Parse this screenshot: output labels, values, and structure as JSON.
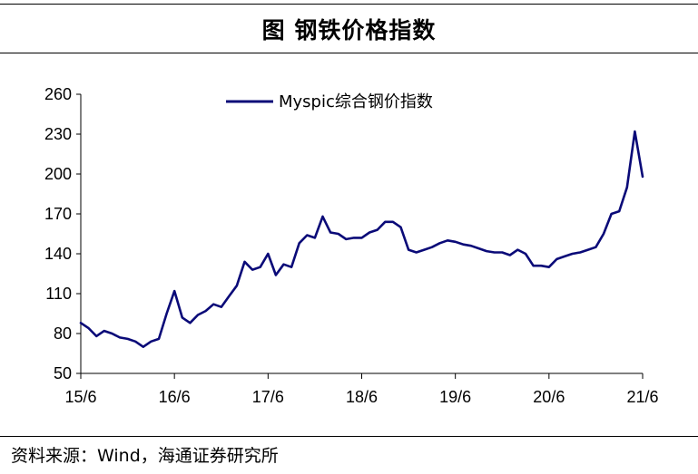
{
  "header": {
    "title": "图  钢铁价格指数"
  },
  "footer": {
    "source": "资料来源：Wind，海通证券研究所"
  },
  "chart_data": {
    "type": "line",
    "title": "",
    "xlabel": "",
    "ylabel": "",
    "ylim": [
      50,
      260
    ],
    "yticks": [
      "50",
      "80",
      "110",
      "140",
      "170",
      "200",
      "230",
      "260"
    ],
    "xticks": [
      "15/6",
      "16/6",
      "17/6",
      "18/6",
      "19/6",
      "20/6",
      "21/6"
    ],
    "legend_position": "top",
    "grid": false,
    "line_color": "#0a0a78",
    "series": [
      {
        "name": "Myspic综合钢价指数",
        "x": [
          "2015-06",
          "2015-07",
          "2015-08",
          "2015-09",
          "2015-10",
          "2015-11",
          "2015-12",
          "2016-01",
          "2016-02",
          "2016-03",
          "2016-04",
          "2016-05",
          "2016-06",
          "2016-07",
          "2016-08",
          "2016-09",
          "2016-10",
          "2016-11",
          "2016-12",
          "2017-01",
          "2017-02",
          "2017-03",
          "2017-04",
          "2017-05",
          "2017-06",
          "2017-07",
          "2017-08",
          "2017-09",
          "2017-10",
          "2017-11",
          "2017-12",
          "2018-01",
          "2018-02",
          "2018-03",
          "2018-04",
          "2018-05",
          "2018-06",
          "2018-07",
          "2018-08",
          "2018-09",
          "2018-10",
          "2018-11",
          "2018-12",
          "2019-01",
          "2019-02",
          "2019-03",
          "2019-04",
          "2019-05",
          "2019-06",
          "2019-07",
          "2019-08",
          "2019-09",
          "2019-10",
          "2019-11",
          "2019-12",
          "2020-01",
          "2020-02",
          "2020-03",
          "2020-04",
          "2020-05",
          "2020-06",
          "2020-07",
          "2020-08",
          "2020-09",
          "2020-10",
          "2020-11",
          "2020-12",
          "2021-01",
          "2021-02",
          "2021-03",
          "2021-04",
          "2021-05",
          "2021-06"
        ],
        "values": [
          88,
          84,
          78,
          82,
          80,
          77,
          76,
          74,
          70,
          74,
          76,
          95,
          112,
          92,
          88,
          94,
          97,
          102,
          100,
          108,
          116,
          134,
          128,
          130,
          140,
          124,
          132,
          130,
          148,
          154,
          152,
          168,
          156,
          155,
          151,
          152,
          152,
          156,
          158,
          164,
          164,
          160,
          143,
          141,
          143,
          145,
          148,
          150,
          149,
          147,
          146,
          144,
          142,
          141,
          141,
          139,
          143,
          140,
          131,
          131,
          130,
          136,
          138,
          140,
          141,
          143,
          145,
          155,
          170,
          172,
          190,
          232,
          198
        ]
      }
    ]
  }
}
